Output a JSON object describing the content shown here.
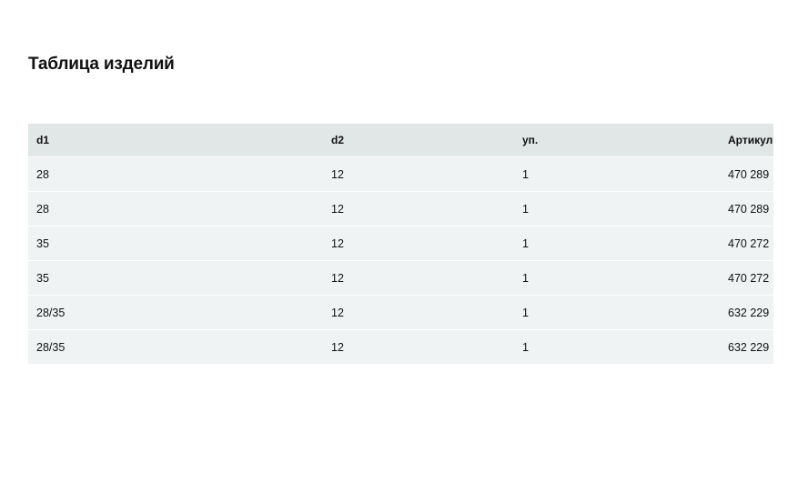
{
  "title": "Таблица изделий",
  "table": {
    "headers": [
      "d1",
      "d2",
      "уп.",
      "Артикул"
    ],
    "rows": [
      [
        "28",
        "12",
        "1",
        "470 289"
      ],
      [
        "28",
        "12",
        "1",
        "470 289"
      ],
      [
        "35",
        "12",
        "1",
        "470 272"
      ],
      [
        "35",
        "12",
        "1",
        "470 272"
      ],
      [
        "28/35",
        "12",
        "1",
        "632 229"
      ],
      [
        "28/35",
        "12",
        "1",
        "632 229"
      ]
    ]
  },
  "colors": {
    "header_bg": "#e1e6e6",
    "row_bg": "#eff3f3"
  }
}
